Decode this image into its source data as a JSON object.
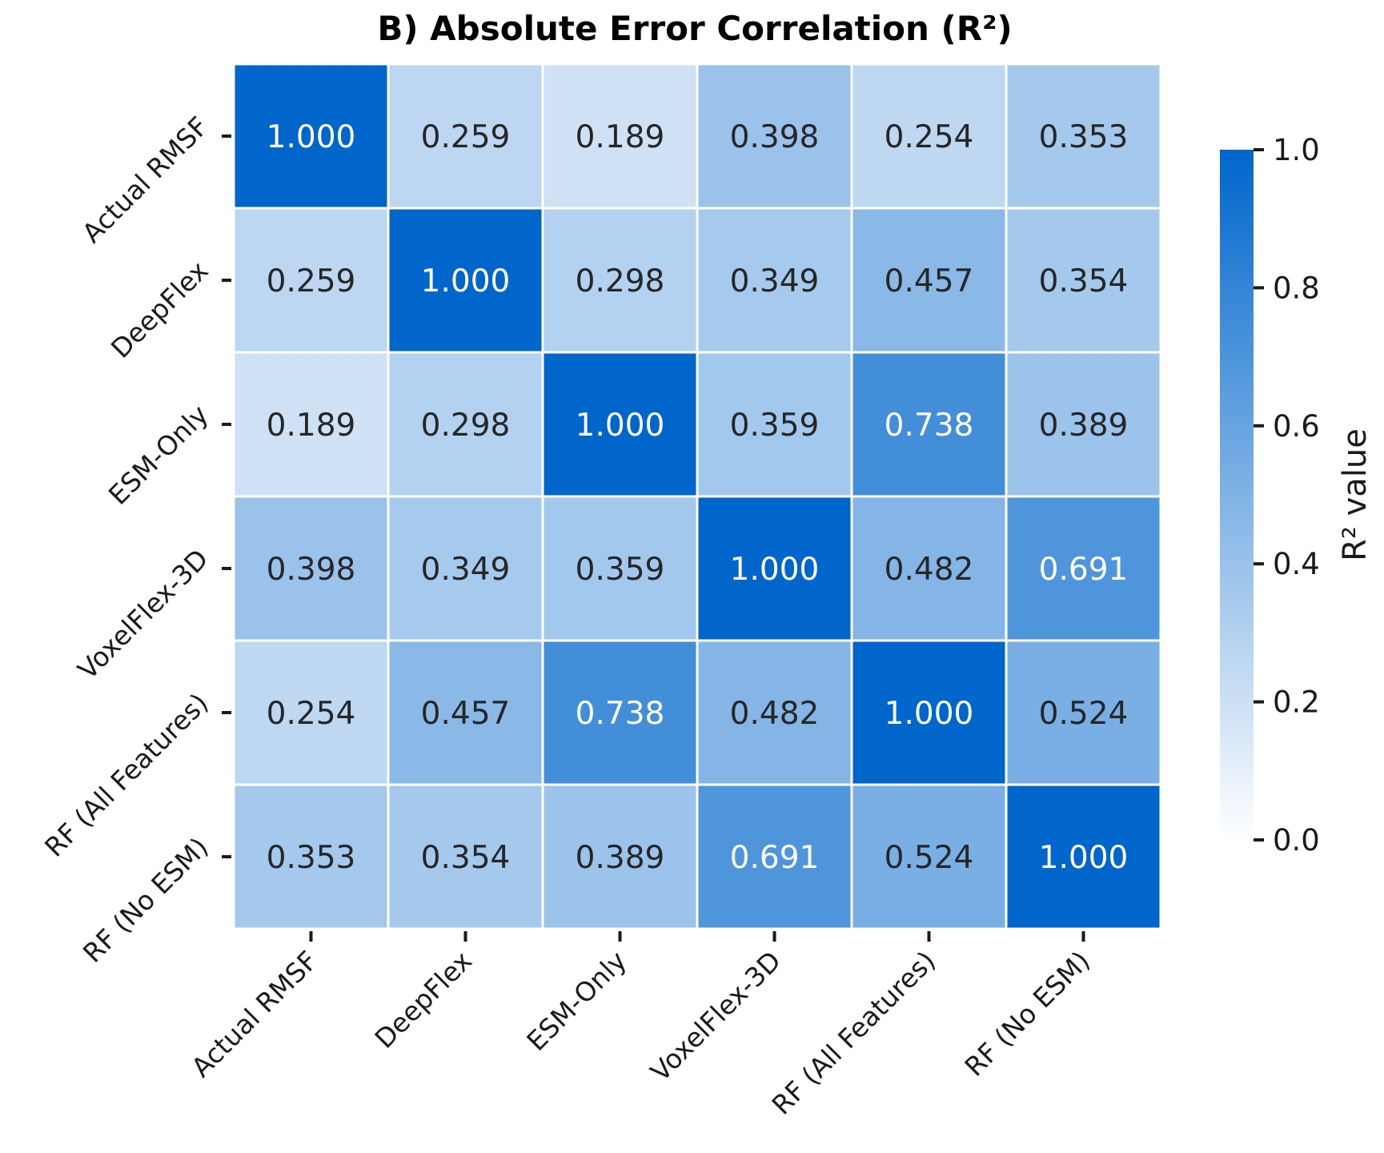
{
  "chart_data": {
    "type": "heatmap",
    "title": "B) Absolute Error Correlation (R²)",
    "row_labels": [
      "Actual RMSF",
      "DeepFlex",
      "ESM-Only",
      "VoxelFlex-3D",
      "RF (All Features)",
      "RF (No ESM)"
    ],
    "col_labels": [
      "Actual RMSF",
      "DeepFlex",
      "ESM-Only",
      "VoxelFlex-3D",
      "RF (All Features)",
      "RF (No ESM)"
    ],
    "values": [
      [
        1.0,
        0.259,
        0.189,
        0.398,
        0.254,
        0.353
      ],
      [
        0.259,
        1.0,
        0.298,
        0.349,
        0.457,
        0.354
      ],
      [
        0.189,
        0.298,
        1.0,
        0.359,
        0.738,
        0.389
      ],
      [
        0.398,
        0.349,
        0.359,
        1.0,
        0.482,
        0.691
      ],
      [
        0.254,
        0.457,
        0.738,
        0.482,
        1.0,
        0.524
      ],
      [
        0.353,
        0.354,
        0.389,
        0.691,
        0.524,
        1.0
      ]
    ],
    "value_format": "3 decimals",
    "colorbar": {
      "label": "R² value",
      "range": [
        0.0,
        1.0
      ],
      "ticks": [
        "0.0",
        "0.2",
        "0.4",
        "0.6",
        "0.8",
        "1.0"
      ],
      "color_low": "#ffffff",
      "color_high": "#0066cc"
    },
    "grid_line_color": "#ffffff"
  }
}
